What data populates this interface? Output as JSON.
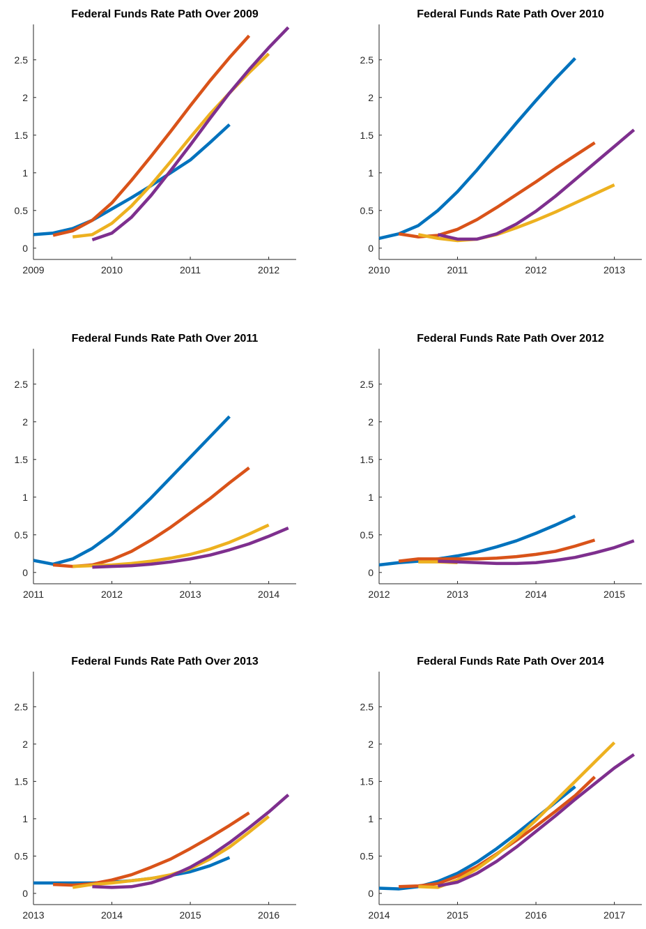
{
  "chart_data": [
    {
      "type": "line",
      "title": "Federal Funds Rate Path Over 2009",
      "x": [
        2009,
        2009.25,
        2009.5,
        2009.75,
        2010,
        2010.25,
        2010.5,
        2010.75,
        2011,
        2011.25,
        2011.5,
        2011.75,
        2012,
        2012.25
      ],
      "series": [
        {
          "color": "#0072BD",
          "values": [
            0.18,
            0.2,
            0.26,
            0.37,
            0.52,
            0.67,
            0.83,
            1.0,
            1.17,
            1.4,
            1.64,
            null,
            null,
            null
          ]
        },
        {
          "color": "#D95319",
          "values": [
            null,
            0.17,
            0.23,
            0.37,
            0.6,
            0.9,
            1.22,
            1.55,
            1.89,
            2.22,
            2.53,
            2.82,
            null,
            null
          ]
        },
        {
          "color": "#EDB120",
          "values": [
            null,
            null,
            0.15,
            0.18,
            0.33,
            0.56,
            0.84,
            1.15,
            1.47,
            1.78,
            2.06,
            2.33,
            2.58,
            null
          ]
        },
        {
          "color": "#7E2F8E",
          "values": [
            null,
            null,
            null,
            0.11,
            0.2,
            0.41,
            0.7,
            1.03,
            1.37,
            1.72,
            2.06,
            2.37,
            2.66,
            2.93
          ]
        }
      ],
      "xlim": [
        2009,
        2012.35
      ],
      "xticks": [
        2009,
        2010,
        2011,
        2012
      ],
      "ylim": [
        -0.15,
        2.97
      ],
      "yticks": [
        0,
        0.5,
        1,
        1.5,
        2,
        2.5
      ]
    },
    {
      "type": "line",
      "title": "Federal Funds Rate Path Over 2010",
      "x": [
        2010,
        2010.25,
        2010.5,
        2010.75,
        2011,
        2011.25,
        2011.5,
        2011.75,
        2012,
        2012.25,
        2012.5,
        2012.75,
        2013,
        2013.25
      ],
      "series": [
        {
          "color": "#0072BD",
          "values": [
            0.13,
            0.19,
            0.3,
            0.5,
            0.75,
            1.04,
            1.35,
            1.66,
            1.96,
            2.25,
            2.52,
            null,
            null,
            null
          ]
        },
        {
          "color": "#D95319",
          "values": [
            null,
            0.19,
            0.15,
            0.17,
            0.25,
            0.38,
            0.54,
            0.71,
            0.88,
            1.06,
            1.23,
            1.4,
            null,
            null
          ]
        },
        {
          "color": "#EDB120",
          "values": [
            null,
            null,
            0.18,
            0.13,
            0.1,
            0.12,
            0.18,
            0.27,
            0.37,
            0.48,
            0.6,
            0.72,
            0.84,
            null
          ]
        },
        {
          "color": "#7E2F8E",
          "values": [
            null,
            null,
            null,
            0.18,
            0.12,
            0.12,
            0.19,
            0.32,
            0.49,
            0.69,
            0.91,
            1.13,
            1.35,
            1.57
          ]
        }
      ],
      "xlim": [
        2010,
        2013.35
      ],
      "xticks": [
        2010,
        2011,
        2012,
        2013
      ],
      "ylim": [
        -0.15,
        2.97
      ],
      "yticks": [
        0,
        0.5,
        1,
        1.5,
        2,
        2.5
      ]
    },
    {
      "type": "line",
      "title": "Federal Funds Rate Path Over 2011",
      "x": [
        2011,
        2011.25,
        2011.5,
        2011.75,
        2012,
        2012.25,
        2012.5,
        2012.75,
        2013,
        2013.25,
        2013.5,
        2013.75,
        2014,
        2014.25
      ],
      "series": [
        {
          "color": "#0072BD",
          "values": [
            0.16,
            0.11,
            0.18,
            0.32,
            0.51,
            0.74,
            0.99,
            1.26,
            1.53,
            1.8,
            2.07,
            null,
            null,
            null
          ]
        },
        {
          "color": "#D95319",
          "values": [
            null,
            0.1,
            0.08,
            0.1,
            0.17,
            0.28,
            0.43,
            0.6,
            0.79,
            0.98,
            1.19,
            1.39,
            null,
            null
          ]
        },
        {
          "color": "#EDB120",
          "values": [
            null,
            null,
            0.08,
            0.09,
            0.1,
            0.12,
            0.15,
            0.19,
            0.24,
            0.31,
            0.4,
            0.51,
            0.63,
            null
          ]
        },
        {
          "color": "#7E2F8E",
          "values": [
            null,
            null,
            null,
            0.07,
            0.08,
            0.09,
            0.11,
            0.14,
            0.18,
            0.23,
            0.3,
            0.38,
            0.48,
            0.59
          ]
        }
      ],
      "xlim": [
        2011,
        2014.35
      ],
      "xticks": [
        2011,
        2012,
        2013,
        2014
      ],
      "ylim": [
        -0.15,
        2.97
      ],
      "yticks": [
        0,
        0.5,
        1,
        1.5,
        2,
        2.5
      ]
    },
    {
      "type": "line",
      "title": "Federal Funds Rate Path Over 2012",
      "x": [
        2012,
        2012.25,
        2012.5,
        2012.75,
        2013,
        2013.25,
        2013.5,
        2013.75,
        2014,
        2014.25,
        2014.5,
        2014.75,
        2015,
        2015.25
      ],
      "series": [
        {
          "color": "#0072BD",
          "values": [
            0.1,
            0.13,
            0.15,
            0.18,
            0.22,
            0.27,
            0.34,
            0.42,
            0.52,
            0.63,
            0.75,
            null,
            null,
            null
          ]
        },
        {
          "color": "#D95319",
          "values": [
            null,
            0.15,
            0.18,
            0.18,
            0.18,
            0.18,
            0.19,
            0.21,
            0.24,
            0.28,
            0.35,
            0.43,
            null,
            null
          ]
        },
        {
          "color": "#EDB120",
          "values": [
            null,
            null,
            0.14,
            0.14,
            0.13,
            null,
            null,
            null,
            null,
            null,
            null,
            null,
            null,
            null
          ]
        },
        {
          "color": "#7E2F8E",
          "values": [
            null,
            null,
            null,
            0.15,
            0.14,
            0.13,
            0.12,
            0.12,
            0.13,
            0.16,
            0.2,
            0.26,
            0.33,
            0.42
          ]
        }
      ],
      "xlim": [
        2012,
        2015.35
      ],
      "xticks": [
        2012,
        2013,
        2014,
        2015
      ],
      "ylim": [
        -0.15,
        2.97
      ],
      "yticks": [
        0,
        0.5,
        1,
        1.5,
        2,
        2.5
      ]
    },
    {
      "type": "line",
      "title": "Federal Funds Rate Path Over 2013",
      "x": [
        2013,
        2013.25,
        2013.5,
        2013.75,
        2014,
        2014.25,
        2014.5,
        2014.75,
        2015,
        2015.25,
        2015.5,
        2015.75,
        2016,
        2016.25
      ],
      "series": [
        {
          "color": "#0072BD",
          "values": [
            0.14,
            0.14,
            0.14,
            0.14,
            0.15,
            0.17,
            0.2,
            0.24,
            0.29,
            0.37,
            0.48,
            null,
            null,
            null
          ]
        },
        {
          "color": "#D95319",
          "values": [
            null,
            0.12,
            0.11,
            0.13,
            0.18,
            0.25,
            0.35,
            0.46,
            0.6,
            0.75,
            0.91,
            1.08,
            null,
            null
          ]
        },
        {
          "color": "#EDB120",
          "values": [
            null,
            null,
            0.08,
            0.12,
            0.14,
            0.17,
            0.2,
            0.25,
            0.33,
            0.46,
            0.62,
            0.82,
            1.03,
            null
          ]
        },
        {
          "color": "#7E2F8E",
          "values": [
            null,
            null,
            null,
            0.09,
            0.08,
            0.09,
            0.14,
            0.23,
            0.35,
            0.5,
            0.68,
            0.88,
            1.09,
            1.32
          ]
        }
      ],
      "xlim": [
        2013,
        2016.35
      ],
      "xticks": [
        2013,
        2014,
        2015,
        2016
      ],
      "ylim": [
        -0.15,
        2.97
      ],
      "yticks": [
        0,
        0.5,
        1,
        1.5,
        2,
        2.5
      ]
    },
    {
      "type": "line",
      "title": "Federal Funds Rate Path Over 2014",
      "x": [
        2014,
        2014.25,
        2014.5,
        2014.75,
        2015,
        2015.25,
        2015.5,
        2015.75,
        2016,
        2016.25,
        2016.5,
        2016.75,
        2017,
        2017.25
      ],
      "series": [
        {
          "color": "#0072BD",
          "values": [
            0.07,
            0.06,
            0.09,
            0.16,
            0.27,
            0.42,
            0.6,
            0.8,
            1.01,
            1.22,
            1.43,
            null,
            null,
            null
          ]
        },
        {
          "color": "#D95319",
          "values": [
            null,
            0.09,
            0.1,
            0.13,
            0.23,
            0.36,
            0.53,
            0.71,
            0.9,
            1.1,
            1.31,
            1.56,
            null,
            null
          ]
        },
        {
          "color": "#EDB120",
          "values": [
            null,
            null,
            0.09,
            0.08,
            0.18,
            0.33,
            0.52,
            0.74,
            0.98,
            1.24,
            1.5,
            1.76,
            2.02,
            null
          ]
        },
        {
          "color": "#7E2F8E",
          "values": [
            null,
            null,
            null,
            0.1,
            0.15,
            0.27,
            0.43,
            0.62,
            0.83,
            1.04,
            1.26,
            1.47,
            1.68,
            1.86
          ]
        }
      ],
      "xlim": [
        2014,
        2017.35
      ],
      "xticks": [
        2014,
        2015,
        2016,
        2017
      ],
      "ylim": [
        -0.15,
        2.97
      ],
      "yticks": [
        0,
        0.5,
        1,
        1.5,
        2,
        2.5
      ]
    }
  ]
}
